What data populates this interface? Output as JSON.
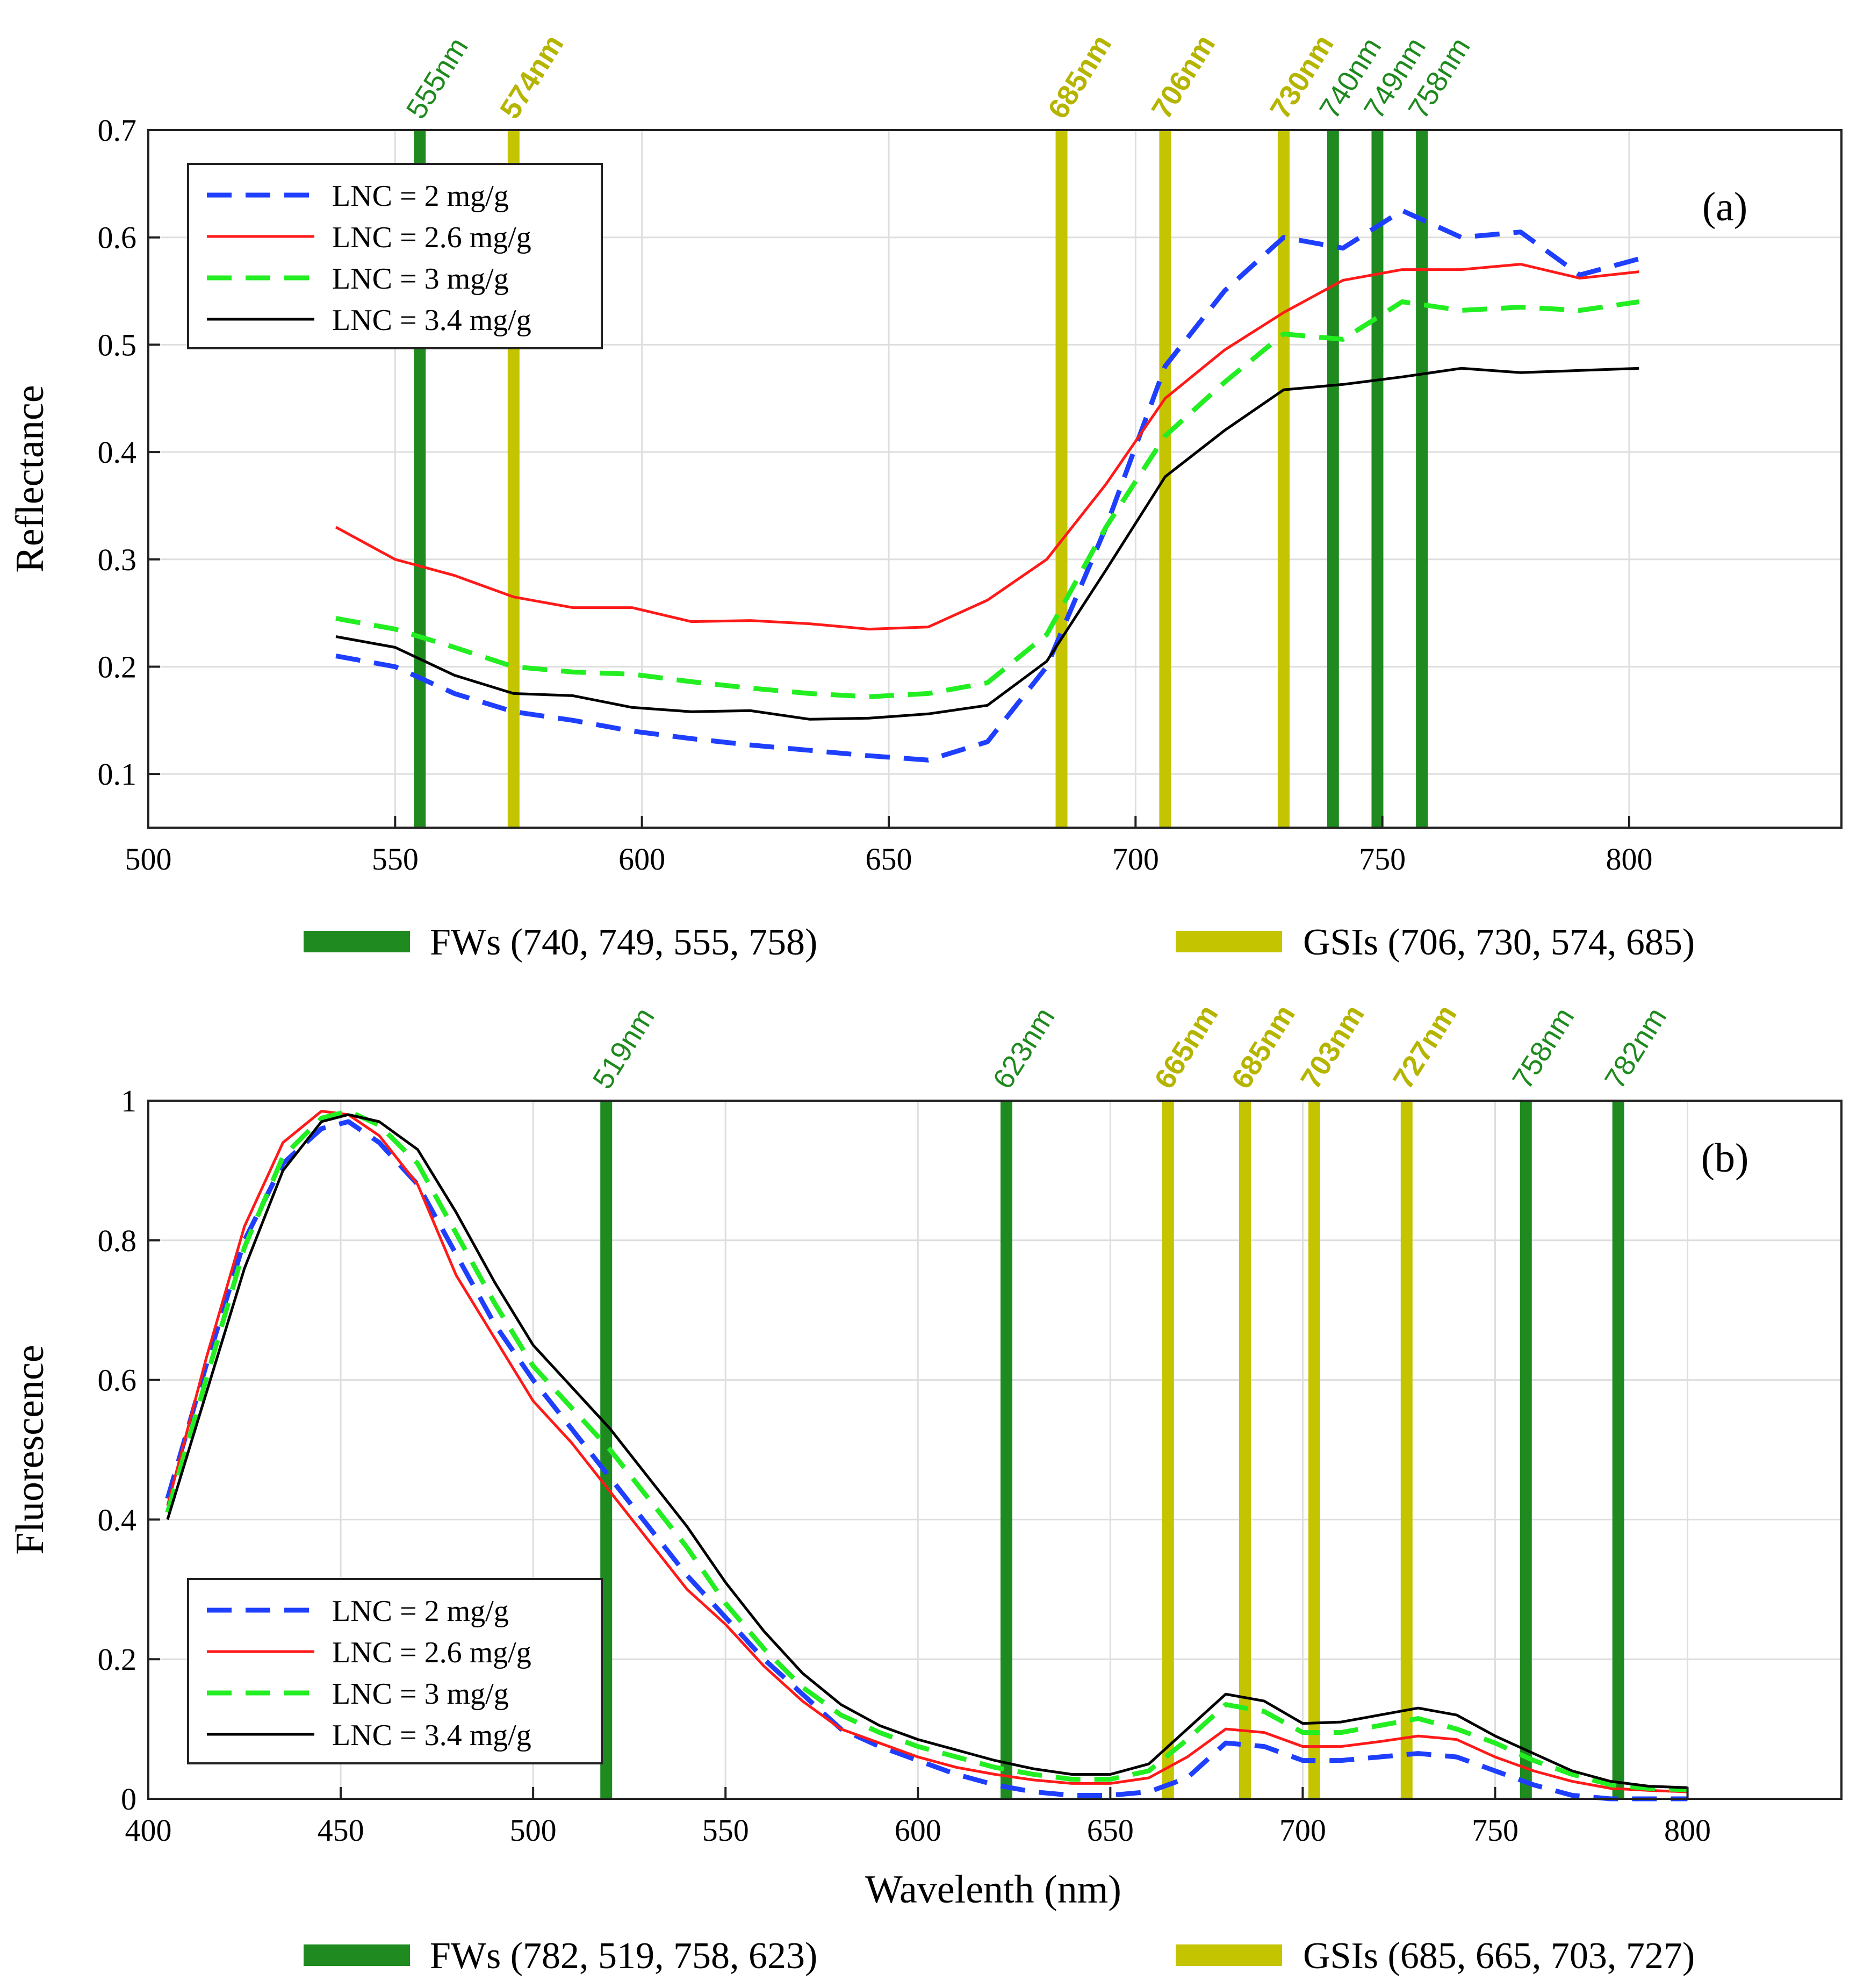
{
  "colors": {
    "fw_band": "#1f8a1f",
    "gsi_band": "#c4c400",
    "fw_label": "#1e8a1e",
    "gsi_label": "#b5b500",
    "lnc_2": "#1f3fff",
    "lnc_2_6": "#ff1a1a",
    "lnc_3": "#22ee22",
    "lnc_3_4": "#000000",
    "grid": "#dedede"
  },
  "chart_data": [
    {
      "panel": "(a)",
      "type": "line",
      "ylabel": "Reflectance",
      "xlabel": "",
      "xlim": [
        500,
        843
      ],
      "ylim": [
        0.05,
        0.7
      ],
      "xticks": [
        500,
        550,
        600,
        650,
        700,
        750,
        800
      ],
      "yticks": [
        0.1,
        0.2,
        0.3,
        0.4,
        0.5,
        0.6,
        0.7
      ],
      "grid": true,
      "legend_position": "top-left",
      "series": [
        {
          "name": "LNC = 2 mg/g",
          "style": "dashed",
          "x": [
            538,
            550,
            562,
            574,
            586,
            598,
            610,
            622,
            634,
            646,
            658,
            670,
            682,
            694,
            706,
            718,
            730,
            742,
            754,
            766,
            778,
            790,
            802
          ],
          "y": [
            0.21,
            0.2,
            0.175,
            0.158,
            0.15,
            0.14,
            0.133,
            0.127,
            0.122,
            0.117,
            0.113,
            0.13,
            0.2,
            0.33,
            0.48,
            0.55,
            0.6,
            0.59,
            0.625,
            0.6,
            0.605,
            0.565,
            0.58
          ]
        },
        {
          "name": "LNC = 2.6 mg/g",
          "style": "solid",
          "x": [
            538,
            550,
            562,
            574,
            586,
            598,
            610,
            622,
            634,
            646,
            658,
            670,
            682,
            694,
            706,
            718,
            730,
            742,
            754,
            766,
            778,
            790,
            802
          ],
          "y": [
            0.33,
            0.3,
            0.285,
            0.265,
            0.255,
            0.255,
            0.242,
            0.243,
            0.24,
            0.235,
            0.237,
            0.262,
            0.3,
            0.37,
            0.45,
            0.495,
            0.53,
            0.56,
            0.57,
            0.57,
            0.575,
            0.562,
            0.568
          ]
        },
        {
          "name": "LNC = 3 mg/g",
          "style": "dashed",
          "x": [
            538,
            550,
            562,
            574,
            586,
            598,
            610,
            622,
            634,
            646,
            658,
            670,
            682,
            694,
            706,
            718,
            730,
            742,
            754,
            766,
            778,
            790,
            802
          ],
          "y": [
            0.245,
            0.235,
            0.218,
            0.2,
            0.195,
            0.193,
            0.186,
            0.18,
            0.175,
            0.172,
            0.175,
            0.185,
            0.23,
            0.33,
            0.415,
            0.465,
            0.51,
            0.505,
            0.54,
            0.532,
            0.535,
            0.532,
            0.54
          ]
        },
        {
          "name": "LNC = 3.4 mg/g",
          "style": "solid",
          "x": [
            538,
            550,
            562,
            574,
            586,
            598,
            610,
            622,
            634,
            646,
            658,
            670,
            682,
            694,
            706,
            718,
            730,
            742,
            754,
            766,
            778,
            790,
            802
          ],
          "y": [
            0.228,
            0.218,
            0.192,
            0.175,
            0.173,
            0.162,
            0.158,
            0.159,
            0.151,
            0.152,
            0.156,
            0.164,
            0.205,
            0.29,
            0.377,
            0.42,
            0.458,
            0.463,
            0.47,
            0.478,
            0.474,
            0.476,
            0.478
          ]
        }
      ],
      "bands": [
        {
          "wavelength": 555,
          "label": "555nm",
          "group": "FWs"
        },
        {
          "wavelength": 574,
          "label": "574nm",
          "group": "GSIs"
        },
        {
          "wavelength": 685,
          "label": "685nm",
          "group": "GSIs"
        },
        {
          "wavelength": 706,
          "label": "706nm",
          "group": "GSIs"
        },
        {
          "wavelength": 730,
          "label": "730nm",
          "group": "GSIs"
        },
        {
          "wavelength": 740,
          "label": "740nm",
          "group": "FWs"
        },
        {
          "wavelength": 749,
          "label": "749nm",
          "group": "FWs"
        },
        {
          "wavelength": 758,
          "label": "758nm",
          "group": "FWs"
        }
      ],
      "bottom_legend": {
        "fw": "FWs (740, 749, 555, 758)",
        "gsi": "GSIs (706, 730, 574, 685)"
      }
    },
    {
      "panel": "(b)",
      "type": "line",
      "ylabel": "Fluorescence",
      "xlabel": "Wavelenth (nm)",
      "xlim": [
        400,
        840
      ],
      "ylim": [
        0,
        1
      ],
      "xticks": [
        400,
        450,
        500,
        550,
        600,
        650,
        700,
        750,
        800
      ],
      "yticks": [
        0,
        0.2,
        0.4,
        0.6,
        0.8,
        1
      ],
      "grid": true,
      "legend_position": "bottom-left",
      "series": [
        {
          "name": "LNC = 2 mg/g",
          "style": "dashed",
          "x": [
            405,
            415,
            425,
            435,
            445,
            452,
            460,
            470,
            480,
            490,
            500,
            510,
            520,
            530,
            540,
            550,
            560,
            570,
            580,
            590,
            600,
            610,
            620,
            630,
            640,
            650,
            660,
            670,
            680,
            690,
            700,
            710,
            720,
            730,
            740,
            750,
            760,
            770,
            780,
            790,
            800
          ],
          "y": [
            0.43,
            0.62,
            0.8,
            0.91,
            0.96,
            0.97,
            0.94,
            0.88,
            0.78,
            0.68,
            0.6,
            0.53,
            0.46,
            0.39,
            0.32,
            0.26,
            0.2,
            0.15,
            0.1,
            0.075,
            0.055,
            0.035,
            0.02,
            0.01,
            0.005,
            0.005,
            0.01,
            0.03,
            0.08,
            0.075,
            0.055,
            0.055,
            0.06,
            0.065,
            0.06,
            0.04,
            0.02,
            0.005,
            0,
            0,
            0
          ]
        },
        {
          "name": "LNC = 2.6 mg/g",
          "style": "solid",
          "x": [
            405,
            415,
            425,
            435,
            445,
            452,
            460,
            470,
            480,
            490,
            500,
            510,
            520,
            530,
            540,
            550,
            560,
            570,
            580,
            590,
            600,
            610,
            620,
            630,
            640,
            650,
            660,
            670,
            680,
            690,
            700,
            710,
            720,
            730,
            740,
            750,
            760,
            770,
            780,
            790,
            800
          ],
          "y": [
            0.42,
            0.63,
            0.82,
            0.94,
            0.985,
            0.98,
            0.95,
            0.88,
            0.75,
            0.66,
            0.57,
            0.51,
            0.44,
            0.37,
            0.3,
            0.25,
            0.19,
            0.14,
            0.1,
            0.08,
            0.06,
            0.045,
            0.035,
            0.027,
            0.022,
            0.022,
            0.03,
            0.06,
            0.1,
            0.095,
            0.075,
            0.075,
            0.082,
            0.09,
            0.085,
            0.06,
            0.04,
            0.025,
            0.015,
            0.012,
            0.01
          ]
        },
        {
          "name": "LNC = 3 mg/g",
          "style": "dashed",
          "x": [
            405,
            415,
            425,
            435,
            445,
            452,
            460,
            470,
            480,
            490,
            500,
            510,
            520,
            530,
            540,
            550,
            560,
            570,
            580,
            590,
            600,
            610,
            620,
            630,
            640,
            650,
            660,
            670,
            680,
            690,
            700,
            710,
            720,
            730,
            740,
            750,
            760,
            770,
            780,
            790,
            800
          ],
          "y": [
            0.41,
            0.6,
            0.79,
            0.92,
            0.975,
            0.985,
            0.965,
            0.91,
            0.81,
            0.71,
            0.62,
            0.56,
            0.5,
            0.43,
            0.36,
            0.28,
            0.215,
            0.16,
            0.12,
            0.095,
            0.075,
            0.06,
            0.045,
            0.035,
            0.028,
            0.028,
            0.04,
            0.085,
            0.135,
            0.125,
            0.095,
            0.095,
            0.105,
            0.115,
            0.1,
            0.08,
            0.055,
            0.035,
            0.02,
            0.015,
            0.013
          ]
        },
        {
          "name": "LNC = 3.4 mg/g",
          "style": "solid",
          "x": [
            405,
            415,
            425,
            435,
            445,
            452,
            460,
            470,
            480,
            490,
            500,
            510,
            520,
            530,
            540,
            550,
            560,
            570,
            580,
            590,
            600,
            610,
            620,
            630,
            640,
            650,
            660,
            670,
            680,
            690,
            700,
            710,
            720,
            730,
            740,
            750,
            760,
            770,
            780,
            790,
            800
          ],
          "y": [
            0.4,
            0.58,
            0.76,
            0.9,
            0.97,
            0.98,
            0.97,
            0.93,
            0.84,
            0.74,
            0.65,
            0.59,
            0.53,
            0.46,
            0.39,
            0.31,
            0.24,
            0.18,
            0.135,
            0.105,
            0.085,
            0.07,
            0.055,
            0.043,
            0.035,
            0.035,
            0.05,
            0.1,
            0.15,
            0.14,
            0.108,
            0.11,
            0.12,
            0.13,
            0.12,
            0.09,
            0.065,
            0.04,
            0.025,
            0.018,
            0.016
          ]
        }
      ],
      "bands": [
        {
          "wavelength": 519,
          "label": "519nm",
          "group": "FWs"
        },
        {
          "wavelength": 623,
          "label": "623nm",
          "group": "FWs"
        },
        {
          "wavelength": 665,
          "label": "665nm",
          "group": "GSIs"
        },
        {
          "wavelength": 685,
          "label": "685nm",
          "group": "GSIs"
        },
        {
          "wavelength": 703,
          "label": "703nm",
          "group": "GSIs"
        },
        {
          "wavelength": 727,
          "label": "727nm",
          "group": "GSIs"
        },
        {
          "wavelength": 758,
          "label": "758nm",
          "group": "FWs"
        },
        {
          "wavelength": 782,
          "label": "782nm",
          "group": "FWs"
        }
      ],
      "bottom_legend": {
        "fw": "FWs (782, 519, 758, 623)",
        "gsi": "GSIs (685, 665, 703, 727)"
      }
    }
  ]
}
